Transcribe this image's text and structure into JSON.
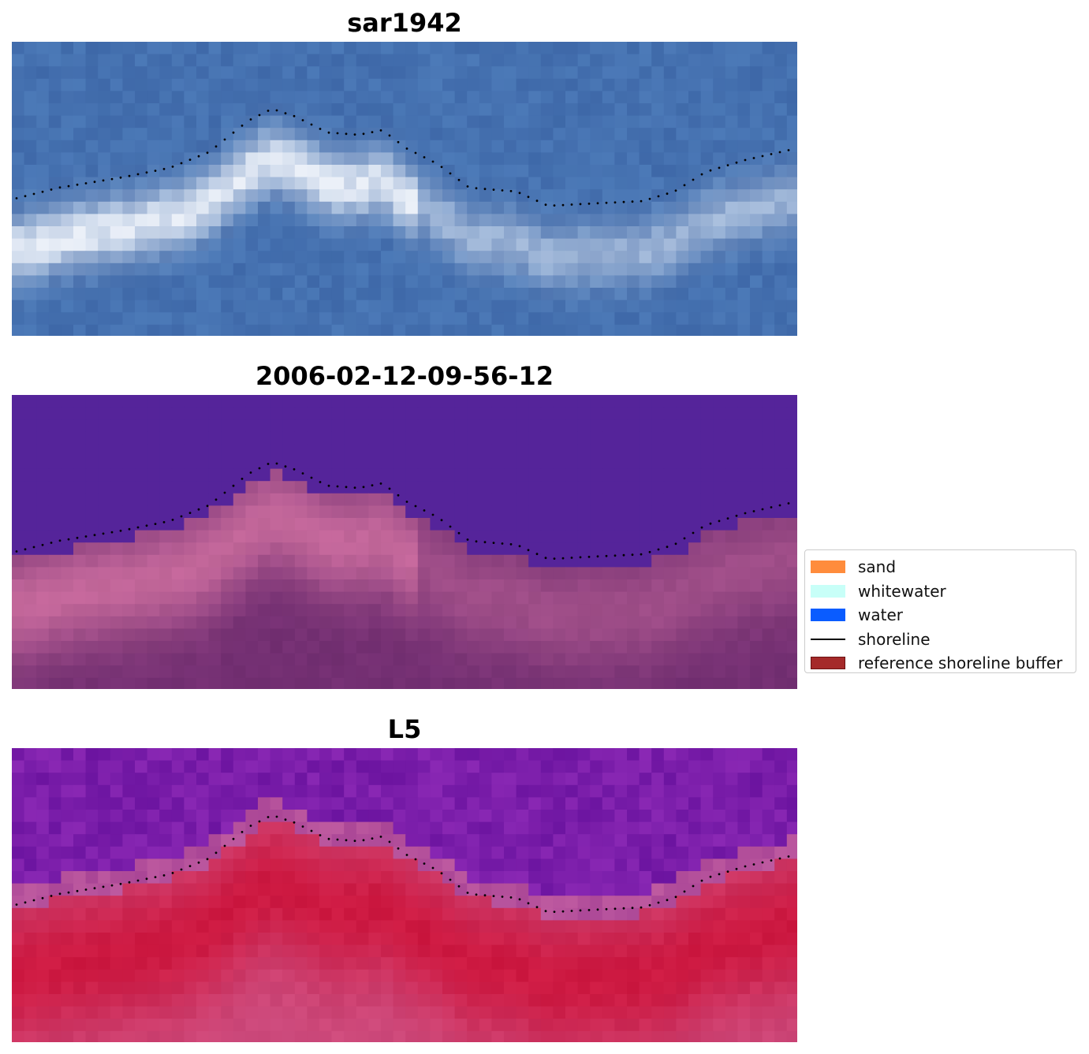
{
  "panels": [
    {
      "title": "sar1942",
      "style": "rgb"
    },
    {
      "title": "2006-02-12-09-56-12",
      "style": "classified"
    },
    {
      "title": "L5",
      "style": "index"
    }
  ],
  "legend": {
    "items": [
      {
        "label": "sand",
        "color": "#ff8c3c",
        "kind": "patch"
      },
      {
        "label": "whitewater",
        "color": "#c8fff8",
        "kind": "patch"
      },
      {
        "label": "water",
        "color": "#0a5cff",
        "kind": "patch"
      },
      {
        "label": "shoreline",
        "color": "#000000",
        "kind": "line"
      },
      {
        "label": "reference shoreline buffer",
        "color": "#a52a2a",
        "kind": "patch-edge"
      }
    ]
  },
  "colors": {
    "rgb_water": "#3f68a8",
    "classified_water": "#55249a",
    "classified_land": "#b25c92",
    "index_water": "#6a1fa0",
    "index_land": "#c0103a",
    "shoreline_dots": "#000000"
  }
}
